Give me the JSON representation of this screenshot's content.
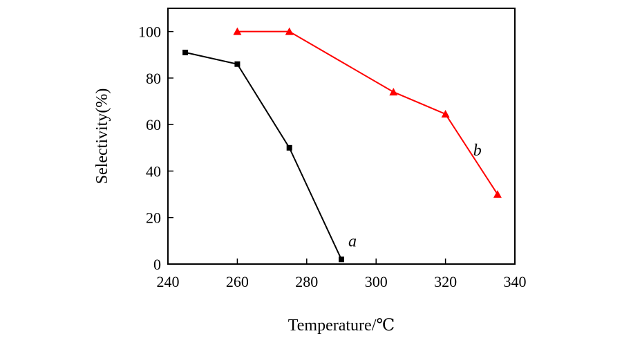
{
  "chart_data": {
    "type": "line",
    "title": "",
    "xlabel": "Temperature/℃",
    "ylabel": "Selectivity(%)",
    "xlim": [
      240,
      340
    ],
    "ylim": [
      0,
      110
    ],
    "xticks": [
      240,
      260,
      280,
      300,
      320,
      340
    ],
    "yticks": [
      0,
      20,
      40,
      60,
      80,
      100
    ],
    "grid": false,
    "series": [
      {
        "name": "a",
        "color": "#000000",
        "marker": "square",
        "x": [
          245,
          260,
          275,
          290
        ],
        "y": [
          91,
          86,
          50,
          2
        ]
      },
      {
        "name": "b",
        "color": "#ff0000",
        "marker": "triangle",
        "x": [
          260,
          275,
          305,
          320,
          335
        ],
        "y": [
          100,
          100,
          74,
          64.5,
          30
        ]
      }
    ],
    "annotations": [
      {
        "text": "a",
        "x": 292,
        "y": 10
      },
      {
        "text": "b",
        "x": 328,
        "y": 49
      }
    ]
  }
}
